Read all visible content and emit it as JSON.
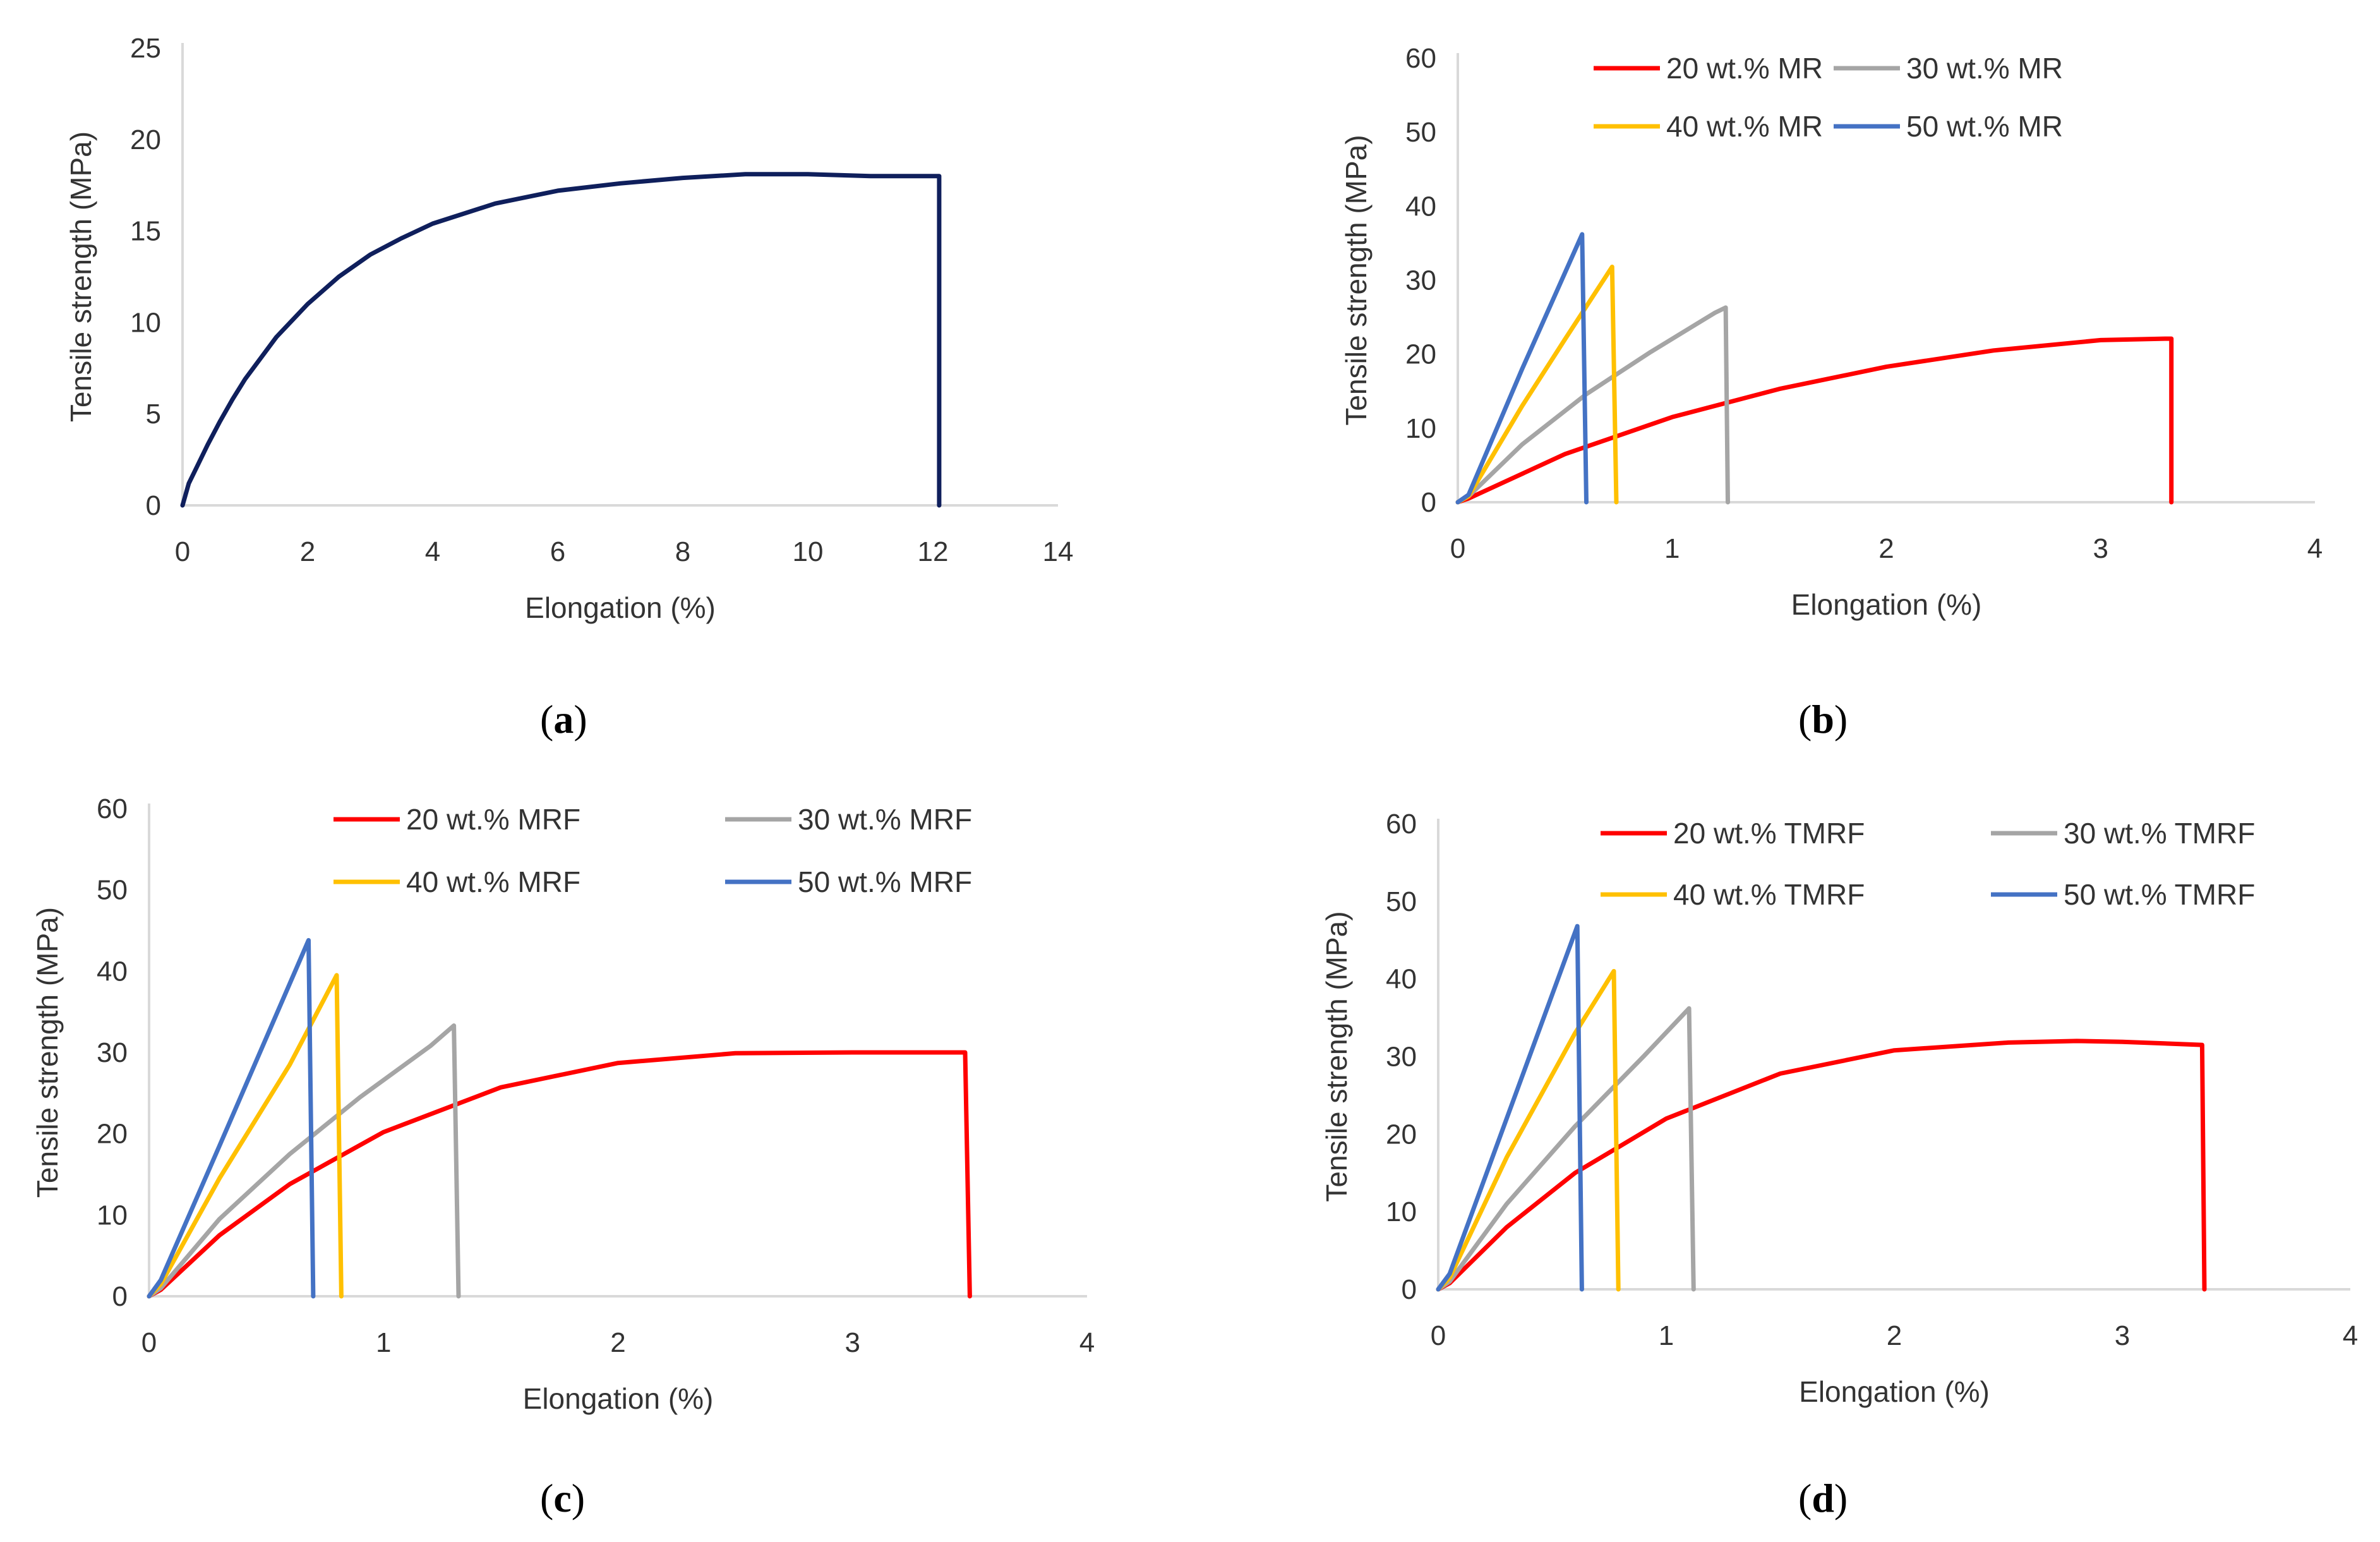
{
  "chart_data": [
    {
      "panel": "a",
      "type": "line",
      "caption_letter": "a",
      "xlabel": "Elongation (%)",
      "ylabel": "Tensile strength (MPa)",
      "xlim": [
        0,
        14
      ],
      "ylim": [
        0,
        25
      ],
      "xticks": [
        0,
        2,
        4,
        6,
        8,
        10,
        12,
        14
      ],
      "yticks": [
        0,
        5,
        10,
        15,
        20,
        25
      ],
      "legend": "none",
      "series": [
        {
          "name": "",
          "color": "#0f1f5c",
          "x": [
            0,
            0.1,
            0.2,
            0.4,
            0.6,
            0.8,
            1.0,
            1.5,
            2.0,
            2.5,
            3.0,
            3.5,
            4.0,
            5.0,
            6.0,
            7.0,
            8.0,
            9.0,
            10.0,
            11.0,
            12.1,
            12.1
          ],
          "y": [
            0,
            1.2,
            1.9,
            3.3,
            4.6,
            5.8,
            6.9,
            9.2,
            11.0,
            12.5,
            13.7,
            14.6,
            15.4,
            16.5,
            17.2,
            17.6,
            17.9,
            18.1,
            18.1,
            18.0,
            18.0,
            0
          ]
        }
      ]
    },
    {
      "panel": "b",
      "type": "line",
      "caption_letter": "b",
      "xlabel": "Elongation (%)",
      "ylabel": "Tensile strength (MPa)",
      "xlim": [
        0,
        4
      ],
      "ylim": [
        0,
        60
      ],
      "xticks": [
        0,
        1,
        2,
        3,
        4
      ],
      "yticks": [
        0,
        10,
        20,
        30,
        40,
        50,
        60
      ],
      "legend": "top",
      "series": [
        {
          "name": "20 wt.% MR",
          "color": "#ff0000",
          "x": [
            0,
            0.05,
            0.5,
            1.0,
            1.5,
            2.0,
            2.5,
            3.0,
            3.3,
            3.33,
            3.33
          ],
          "y": [
            0,
            0.5,
            6.5,
            11.5,
            15.3,
            18.3,
            20.5,
            21.9,
            22.1,
            22.1,
            0
          ]
        },
        {
          "name": "30 wt.% MR",
          "color": "#a5a5a5",
          "x": [
            0,
            0.05,
            0.3,
            0.6,
            0.9,
            1.2,
            1.25,
            1.26
          ],
          "y": [
            0,
            0.8,
            7.8,
            14.6,
            20.3,
            25.6,
            26.3,
            0
          ]
        },
        {
          "name": "40 wt.% MR",
          "color": "#ffc000",
          "x": [
            0,
            0.05,
            0.3,
            0.5,
            0.72,
            0.74
          ],
          "y": [
            0,
            0.8,
            13.0,
            22.0,
            31.8,
            0
          ]
        },
        {
          "name": "50 wt.% MR",
          "color": "#4472c4",
          "x": [
            0,
            0.05,
            0.3,
            0.58,
            0.6
          ],
          "y": [
            0,
            1.0,
            18.0,
            36.2,
            0
          ]
        }
      ]
    },
    {
      "panel": "c",
      "type": "line",
      "caption_letter": "c",
      "xlabel": "Elongation (%)",
      "ylabel": "Tensile strength (MPa)",
      "xlim": [
        0,
        4
      ],
      "ylim": [
        0,
        60
      ],
      "xticks": [
        0,
        1,
        2,
        3,
        4
      ],
      "yticks": [
        0,
        10,
        20,
        30,
        40,
        50,
        60
      ],
      "legend": "top",
      "series": [
        {
          "name": "20 wt.% MRF",
          "color": "#ff0000",
          "x": [
            0,
            0.05,
            0.3,
            0.6,
            1.0,
            1.5,
            2.0,
            2.5,
            3.0,
            3.48,
            3.5
          ],
          "y": [
            0,
            0.8,
            7.5,
            13.8,
            20.2,
            25.7,
            28.7,
            29.9,
            30.0,
            30.0,
            0
          ]
        },
        {
          "name": "30 wt.% MRF",
          "color": "#a5a5a5",
          "x": [
            0,
            0.05,
            0.3,
            0.6,
            0.9,
            1.2,
            1.3,
            1.32
          ],
          "y": [
            0,
            1.0,
            9.5,
            17.5,
            24.5,
            30.8,
            33.3,
            0
          ]
        },
        {
          "name": "40 wt.% MRF",
          "color": "#ffc000",
          "x": [
            0,
            0.05,
            0.3,
            0.6,
            0.8,
            0.82
          ],
          "y": [
            0,
            1.5,
            14.5,
            28.5,
            39.5,
            0
          ]
        },
        {
          "name": "50 wt.% MRF",
          "color": "#4472c4",
          "x": [
            0,
            0.05,
            0.3,
            0.68,
            0.7
          ],
          "y": [
            0,
            2.0,
            18.5,
            43.8,
            0
          ]
        }
      ]
    },
    {
      "panel": "d",
      "type": "line",
      "caption_letter": "d",
      "xlabel": "Elongation (%)",
      "ylabel": "Tensile strength (MPa)",
      "xlim": [
        0,
        4
      ],
      "ylim": [
        0,
        60
      ],
      "xticks": [
        0,
        1,
        2,
        3,
        4
      ],
      "yticks": [
        0,
        10,
        20,
        30,
        40,
        50,
        60
      ],
      "legend": "top",
      "series": [
        {
          "name": "20 wt.% TMRF",
          "color": "#ff0000",
          "x": [
            0,
            0.05,
            0.3,
            0.6,
            1.0,
            1.5,
            2.0,
            2.5,
            2.8,
            3.0,
            3.35,
            3.36
          ],
          "y": [
            0,
            0.8,
            8.0,
            15.0,
            22.0,
            27.8,
            30.8,
            31.8,
            32.0,
            31.9,
            31.5,
            0
          ]
        },
        {
          "name": "30 wt.% TMRF",
          "color": "#a5a5a5",
          "x": [
            0,
            0.05,
            0.3,
            0.6,
            0.9,
            1.1,
            1.12
          ],
          "y": [
            0,
            1.0,
            11.0,
            21.0,
            30.0,
            36.2,
            0
          ]
        },
        {
          "name": "40 wt.% TMRF",
          "color": "#ffc000",
          "x": [
            0,
            0.05,
            0.3,
            0.6,
            0.77,
            0.79
          ],
          "y": [
            0,
            1.5,
            17.0,
            33.0,
            41.0,
            0
          ]
        },
        {
          "name": "50 wt.% TMRF",
          "color": "#4472c4",
          "x": [
            0,
            0.05,
            0.3,
            0.61,
            0.63
          ],
          "y": [
            0,
            2.0,
            22.0,
            46.8,
            0
          ]
        }
      ]
    }
  ]
}
